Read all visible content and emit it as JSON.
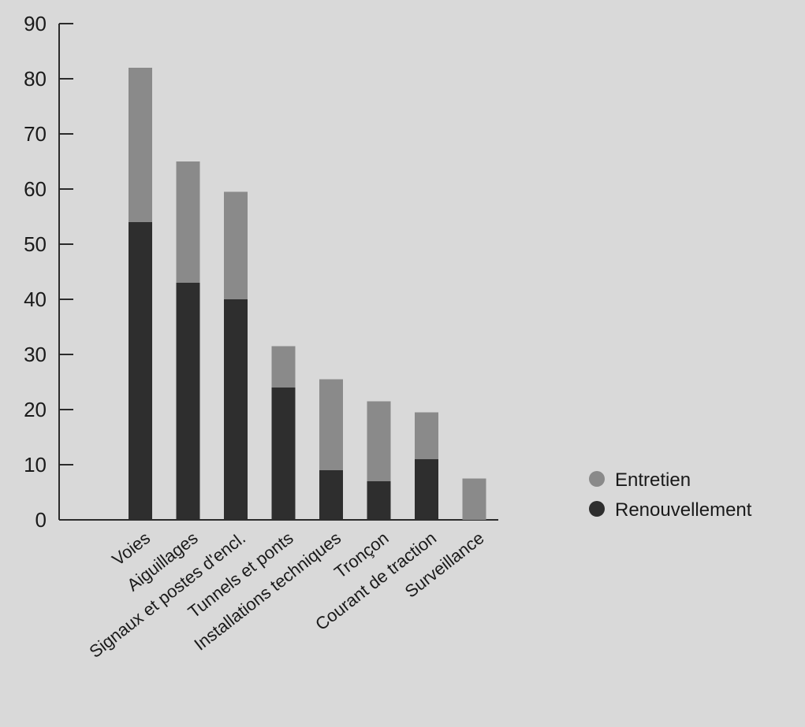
{
  "chart_data": {
    "type": "bar",
    "stacked": true,
    "title": "",
    "xlabel": "",
    "ylabel": "",
    "ylim": [
      0,
      90
    ],
    "yticks": [
      0,
      10,
      20,
      30,
      40,
      50,
      60,
      70,
      80,
      90
    ],
    "categories": [
      "Voies",
      "Aiguillages",
      "Signaux et postes d'encl.",
      "Tunnels et ponts",
      "Installations techniques",
      "Tronçon",
      "Courant de traction",
      "Surveillance"
    ],
    "series": [
      {
        "name": "Renouvellement",
        "color": "#2e2e2e",
        "values": [
          54,
          43,
          40,
          24,
          9,
          7,
          11,
          0
        ]
      },
      {
        "name": "Entretien",
        "color": "#8a8a8a",
        "values": [
          28,
          22,
          19.5,
          7.5,
          16.5,
          14.5,
          8.5,
          7.5
        ]
      }
    ],
    "legend": {
      "position": "right",
      "entries": [
        "Entretien",
        "Renouvellement"
      ]
    },
    "grid": false
  }
}
